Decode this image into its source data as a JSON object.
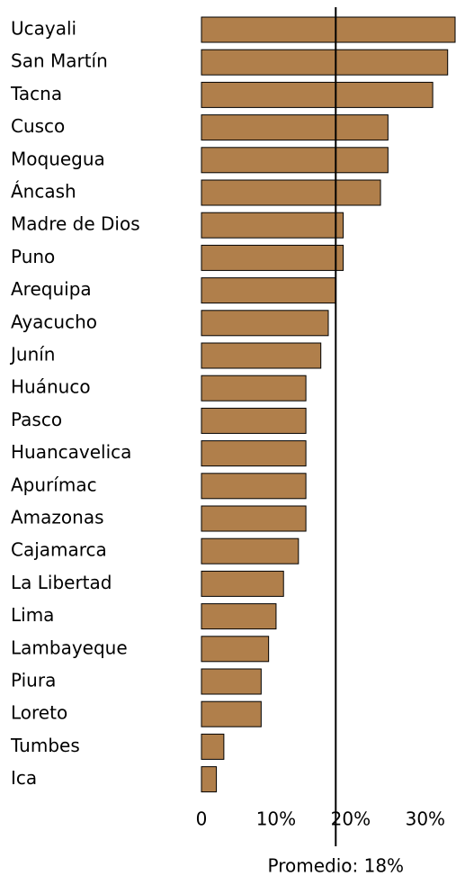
{
  "chart_data": {
    "type": "bar",
    "orientation": "horizontal",
    "categories": [
      "Ucayali",
      "San Martín",
      "Tacna",
      "Cusco",
      "Moquegua",
      "Áncash",
      "Madre de Dios",
      "Puno",
      "Arequipa",
      "Ayacucho",
      "Junín",
      "Huánuco",
      "Pasco",
      "Huancavelica",
      "Apurímac",
      "Amazonas",
      "Cajamarca",
      "La Libertad",
      "Lima",
      "Lambayeque",
      "Piura",
      "Loreto",
      "Tumbes",
      "Ica"
    ],
    "values": [
      34,
      33,
      31,
      25,
      25,
      24,
      19,
      19,
      18,
      17,
      16,
      14,
      14,
      14,
      14,
      14,
      13,
      11,
      10,
      9,
      8,
      8,
      3,
      2
    ],
    "color": "#b07f4b",
    "xlim": [
      0,
      34
    ],
    "xticks": [
      0,
      {
        "value": 10,
        "label": "10%"
      },
      {
        "value": 20,
        "label": "20%"
      },
      {
        "value": 30,
        "label": "30%"
      }
    ],
    "reference_line": {
      "value": 18,
      "label": "Promedio: 18%"
    }
  }
}
